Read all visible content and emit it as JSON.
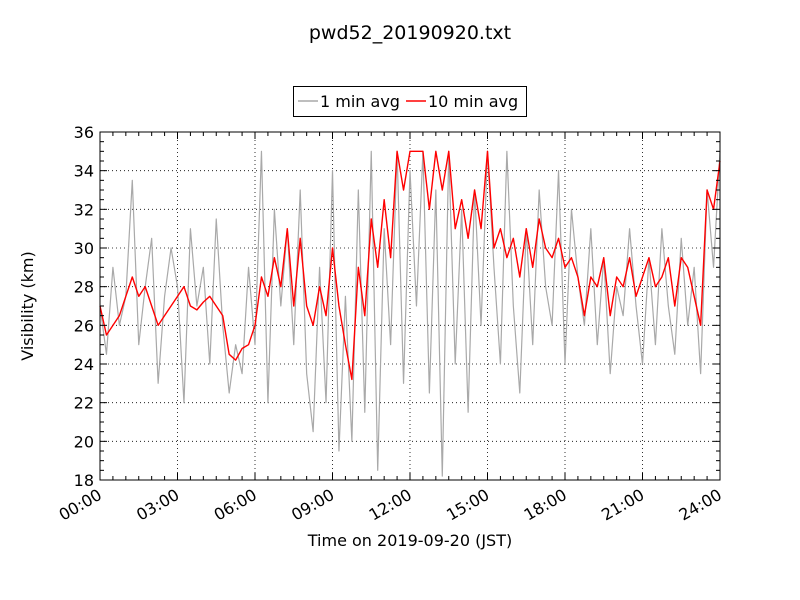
{
  "chart_data": {
    "type": "line",
    "title": "pwd52_20190920.txt",
    "xlabel": "Time on 2019-09-20 (JST)",
    "ylabel": "Visibility (km)",
    "x_ticks": [
      "00:00",
      "03:00",
      "06:00",
      "09:00",
      "12:00",
      "15:00",
      "18:00",
      "21:00",
      "24:00"
    ],
    "xlim_hours": [
      0,
      24
    ],
    "ylim": [
      18,
      36
    ],
    "y_ticks": [
      18,
      20,
      22,
      24,
      26,
      28,
      30,
      32,
      34,
      36
    ],
    "grid": true,
    "legend_position": "top-center, above plot",
    "x_hours": [
      0,
      0.25,
      0.5,
      0.75,
      1,
      1.25,
      1.5,
      1.75,
      2,
      2.25,
      2.5,
      2.75,
      3,
      3.25,
      3.5,
      3.75,
      4,
      4.25,
      4.5,
      4.75,
      5,
      5.25,
      5.5,
      5.75,
      6,
      6.25,
      6.5,
      6.75,
      7,
      7.25,
      7.5,
      7.75,
      8,
      8.25,
      8.5,
      8.75,
      9,
      9.25,
      9.5,
      9.75,
      10,
      10.25,
      10.5,
      10.75,
      11,
      11.25,
      11.5,
      11.75,
      12,
      12.25,
      12.5,
      12.75,
      13,
      13.25,
      13.5,
      13.75,
      14,
      14.25,
      14.5,
      14.75,
      15,
      15.25,
      15.5,
      15.75,
      16,
      16.25,
      16.5,
      16.75,
      17,
      17.25,
      17.5,
      17.75,
      18,
      18.25,
      18.5,
      18.75,
      19,
      19.25,
      19.5,
      19.75,
      20,
      20.25,
      20.5,
      20.75,
      21,
      21.25,
      21.5,
      21.75,
      22,
      22.25,
      22.5,
      22.75,
      23,
      23.25,
      23.5,
      23.75,
      24
    ],
    "series": [
      {
        "name": "1 min avg",
        "color": "#a9a9a9",
        "values": [
          27,
          24.5,
          29,
          26,
          27.5,
          33.5,
          25,
          28,
          30.5,
          23,
          27.5,
          30,
          28,
          22,
          31,
          27,
          29,
          24,
          31.5,
          26,
          22.5,
          25,
          23.5,
          29,
          25,
          35,
          22,
          32,
          27,
          31,
          25,
          33,
          23.5,
          20.5,
          29,
          22,
          34,
          19.5,
          27.5,
          20,
          33,
          21.5,
          35,
          18.5,
          31,
          25,
          35,
          23,
          34,
          27,
          35,
          22.5,
          33,
          18.2,
          35,
          24,
          32,
          21.5,
          33,
          26,
          35,
          29,
          24,
          35,
          27,
          22.5,
          31,
          25,
          33,
          28,
          26,
          34,
          24,
          32,
          28.5,
          26,
          31,
          25,
          29.5,
          23.5,
          28,
          26.5,
          31,
          27,
          24,
          29.5,
          25,
          31,
          27,
          24.5,
          30.5,
          26,
          29,
          23.5,
          33,
          29,
          35
        ]
      },
      {
        "name": "10 min avg",
        "color": "#ff0000",
        "values": [
          27,
          25.5,
          26,
          26.5,
          27.5,
          28.5,
          27.5,
          28,
          27,
          26,
          26.5,
          27,
          27.5,
          28,
          27,
          26.8,
          27.2,
          27.5,
          27,
          26.5,
          24.5,
          24.2,
          24.8,
          25,
          26,
          28.5,
          27.5,
          29.5,
          28,
          31,
          27,
          30.5,
          27,
          26,
          28,
          26.5,
          30,
          27,
          25,
          23.2,
          29,
          26.5,
          31.5,
          29,
          32.5,
          29.5,
          35,
          33,
          35,
          35,
          35,
          32,
          35,
          33,
          35,
          31,
          32.5,
          30.5,
          33,
          31,
          35,
          30,
          31,
          29.5,
          30.5,
          28.5,
          31,
          29,
          31.5,
          30,
          29.5,
          30.5,
          29,
          29.5,
          28.5,
          26.5,
          28.5,
          28,
          29.5,
          26.5,
          28.5,
          28,
          29.5,
          27.5,
          28.5,
          29.5,
          28,
          28.5,
          29.5,
          27,
          29.5,
          29,
          27.5,
          26,
          33,
          32,
          34.5
        ]
      }
    ]
  }
}
